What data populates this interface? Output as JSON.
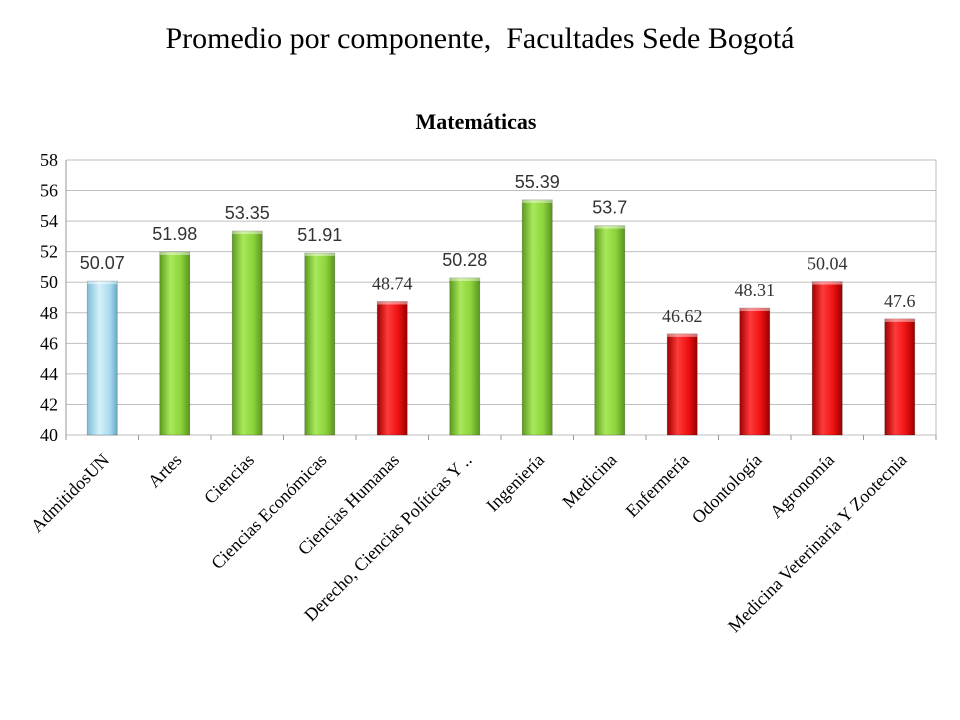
{
  "slide": {
    "title": "Promedio por componente,  Facultades Sede Bogotá"
  },
  "colors": {
    "green": "#8dd43c",
    "red": "#ee1111",
    "light_blue": "#a9dcef",
    "grid": "#bfbfbf"
  },
  "chart_data": {
    "type": "bar",
    "title": "Matemáticas",
    "xlabel": "",
    "ylabel": "",
    "ylim": [
      40,
      58
    ],
    "yticks": [
      40,
      42,
      44,
      46,
      48,
      50,
      52,
      54,
      56,
      58
    ],
    "grid": true,
    "categories": [
      "AdmitidosUN",
      "Artes",
      "Ciencias",
      "Ciencias Económicas",
      "Ciencias Humanas",
      "Derecho, Ciencias Políticas Y ..",
      "Ingeniería",
      "Medicina",
      "Enfermería",
      "Odontología",
      "Agronomía",
      "Medicina Veterinaria Y Zootecnia"
    ],
    "values": [
      50.07,
      51.98,
      53.35,
      51.91,
      48.74,
      50.28,
      55.39,
      53.7,
      46.62,
      48.31,
      50.04,
      47.6
    ],
    "value_labels": [
      "50.07",
      "51.98",
      "53.35",
      "51.91",
      "48.74",
      "50.28",
      "55.39",
      "53.7",
      "46.62",
      "48.31",
      "50.04",
      "47.6"
    ],
    "bar_colors": [
      "light_blue",
      "green",
      "green",
      "green",
      "red",
      "green",
      "green",
      "green",
      "red",
      "red",
      "red",
      "red"
    ]
  }
}
